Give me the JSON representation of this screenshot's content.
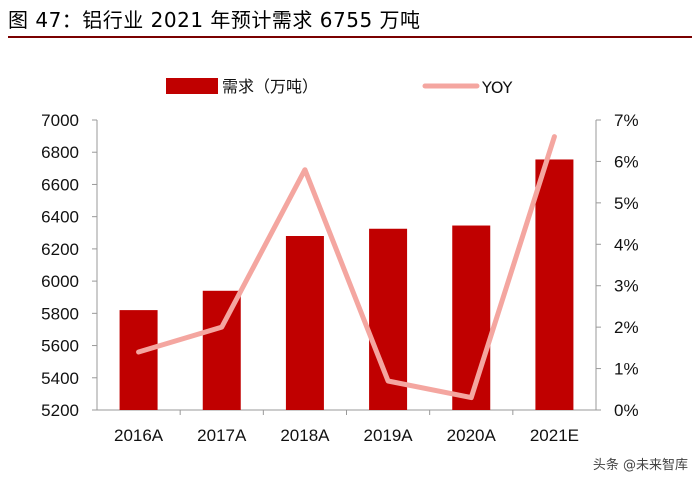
{
  "figure_title": "图 47：铝行业 2021 年预计需求 6755 万吨",
  "watermark": "头条 @未来智库",
  "colors": {
    "bar": "#c00000",
    "line": "#f4a6a0",
    "title_rule": "#7a0000"
  },
  "chart_data": {
    "type": "bar+line",
    "categories": [
      "2016A",
      "2017A",
      "2018A",
      "2019A",
      "2020A",
      "2021E"
    ],
    "series": [
      {
        "name": "需求（万吨）",
        "type": "bar",
        "axis": "left",
        "values": [
          5820,
          5940,
          6280,
          6325,
          6345,
          6755
        ]
      },
      {
        "name": "YOY",
        "type": "line",
        "axis": "right",
        "unit": "%",
        "values": [
          1.4,
          2.0,
          5.8,
          0.7,
          0.3,
          6.6
        ]
      }
    ],
    "left_axis": {
      "ylim": [
        5200,
        7000
      ],
      "ticks": [
        "5200",
        "5400",
        "5600",
        "5800",
        "6000",
        "6200",
        "6400",
        "6600",
        "6800",
        "7000"
      ]
    },
    "right_axis": {
      "ylim": [
        0,
        7
      ],
      "ticks": [
        "0%",
        "1%",
        "2%",
        "3%",
        "4%",
        "5%",
        "6%",
        "7%"
      ]
    },
    "legend": {
      "placement": "top",
      "items": [
        {
          "label": "需求（万吨）",
          "kind": "bar"
        },
        {
          "label": "YOY",
          "kind": "line"
        }
      ]
    },
    "grid": false
  }
}
